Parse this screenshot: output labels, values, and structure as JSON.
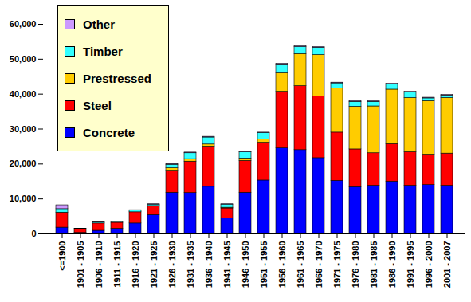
{
  "chart_data": {
    "type": "bar",
    "stacked": true,
    "grid": false,
    "legend": "top-left",
    "categories": [
      "<=1900",
      "1901 - 1905",
      "1906 - 1910",
      "1911 - 1915",
      "1916 - 1920",
      "1921 - 1925",
      "1926 - 1930",
      "1931 - 1935",
      "1936 - 1940",
      "1941 - 1945",
      "1946 - 1950",
      "1951 - 1955",
      "1956 - 1960",
      "1961 - 1965",
      "1966 - 1970",
      "1971 - 1975",
      "1976 - 1980",
      "1981 - 1985",
      "1986 - 1990",
      "1991 - 1995",
      "1996 - 2000",
      "2001 - 2007"
    ],
    "series": [
      {
        "name": "Concrete",
        "color": "#0000ff",
        "values": [
          1800,
          300,
          900,
          1500,
          3000,
          5400,
          11800,
          11700,
          13500,
          4400,
          11800,
          15300,
          24500,
          24000,
          21700,
          15200,
          13400,
          13800,
          15000,
          13800,
          14000,
          13800
        ]
      },
      {
        "name": "Steel",
        "color": "#ff0000",
        "values": [
          4200,
          1100,
          2100,
          1700,
          3200,
          2500,
          6300,
          9000,
          11500,
          2900,
          9100,
          10800,
          16200,
          18300,
          17700,
          13800,
          10800,
          9300,
          10700,
          9600,
          8700,
          9200
        ]
      },
      {
        "name": "Prestressed",
        "color": "#ffcc00",
        "values": [
          100,
          0,
          0,
          0,
          0,
          100,
          700,
          700,
          600,
          200,
          700,
          900,
          5500,
          9200,
          11800,
          12600,
          12200,
          13400,
          15600,
          15500,
          15300,
          15900
        ]
      },
      {
        "name": "Timber",
        "color": "#33ffff",
        "values": [
          1000,
          100,
          400,
          300,
          500,
          400,
          1000,
          1700,
          2000,
          900,
          1800,
          1900,
          2300,
          2000,
          2100,
          1500,
          1400,
          1300,
          1500,
          1600,
          800,
          700
        ]
      },
      {
        "name": "Other",
        "color": "#cc99ff",
        "values": [
          1100,
          0,
          100,
          0,
          100,
          100,
          200,
          200,
          200,
          100,
          100,
          100,
          200,
          200,
          200,
          200,
          200,
          200,
          200,
          200,
          200,
          200
        ]
      }
    ],
    "ylim": [
      0,
      60000
    ],
    "yticks": [
      0,
      {
        "value": 10000,
        "label": "10,000"
      },
      {
        "value": 20000,
        "label": "20,000"
      },
      {
        "value": 30000,
        "label": "30,000"
      },
      {
        "value": 40000,
        "label": "40,000"
      },
      {
        "value": 50000,
        "label": "50,000"
      },
      {
        "value": 60000,
        "label": "60,000"
      }
    ]
  }
}
